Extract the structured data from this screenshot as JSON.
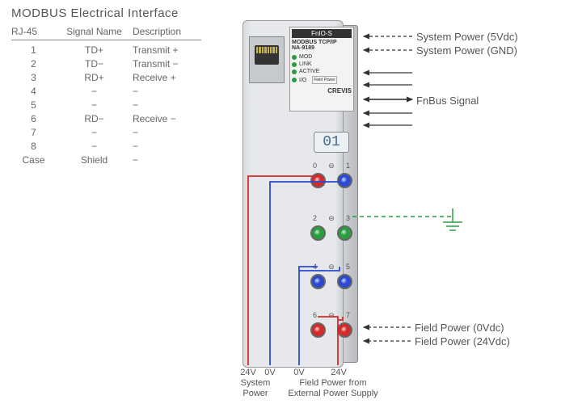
{
  "title": "MODBUS Electrical Interface",
  "table": {
    "headers": [
      "RJ-45",
      "Signal Name",
      "Description"
    ],
    "rows": [
      [
        "1",
        "TD+",
        "Transmit +"
      ],
      [
        "2",
        "TD−",
        "Transmit −"
      ],
      [
        "3",
        "RD+",
        "Receive +"
      ],
      [
        "4",
        "−",
        "−"
      ],
      [
        "5",
        "−",
        "−"
      ],
      [
        "6",
        "RD−",
        "Receive −"
      ],
      [
        "7",
        "−",
        "−"
      ],
      [
        "8",
        "−",
        "−"
      ],
      [
        "Case",
        "Shield",
        "−"
      ]
    ]
  },
  "device": {
    "series": "FnIO-S",
    "protocol": "MODBUS TCP/IP",
    "model": "NA-9189",
    "leds": [
      "MOD",
      "LINK",
      "ACTIVE",
      "I/O"
    ],
    "fieldPower": "Field Power",
    "brand": "CREVIS",
    "display": "01"
  },
  "terminals": {
    "pairs": [
      {
        "labels": [
          "0",
          "1"
        ],
        "colors": [
          "#d42a2a",
          "#2a4ad4"
        ]
      },
      {
        "labels": [
          "2",
          "3"
        ],
        "colors": [
          "#2a9d3e",
          "#2a9d3e"
        ]
      },
      {
        "labels": [
          "4",
          "5"
        ],
        "colors": [
          "#2a4ad4",
          "#2a4ad4"
        ]
      },
      {
        "labels": [
          "6",
          "7"
        ],
        "colors": [
          "#d42a2a",
          "#d42a2a"
        ]
      }
    ]
  },
  "rightLabels": {
    "sysPower5v": "System Power (5Vdc)",
    "sysPowerGnd": "System Power (GND)",
    "fnbus": "FnBus Signal",
    "fieldPower0v": "Field Power (0Vdc)",
    "fieldPower24v": "Field Power (24Vdc)"
  },
  "bottomLabels": {
    "sys24v": "24V",
    "sys0v": "0V",
    "sysPower": "System Power",
    "fld0v": "0V",
    "fld24v": "24V",
    "fldPower": "Field Power from External Power Supply"
  },
  "colors": {
    "red": "#d42a2a",
    "blue": "#2a4ad4",
    "green": "#2a9d3e",
    "groundDash": "#2a9d3e",
    "arrow": "#333333",
    "text": "#555555",
    "deviceBg": "#e6e8eb",
    "panelBg": "#f3f3f3"
  }
}
